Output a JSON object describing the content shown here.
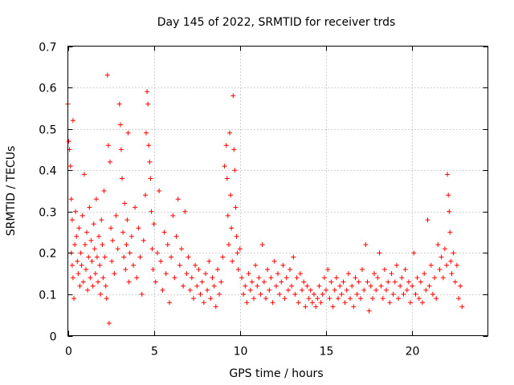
{
  "chart_data": {
    "type": "scatter",
    "title": "Day 145 of 2022, SRMTID for receiver trds",
    "xlabel": "GPS time / hours",
    "ylabel": "SRMTID / TECUs",
    "xlim": [
      0,
      24.4
    ],
    "ylim": [
      0,
      0.7
    ],
    "xticks": [
      0,
      5,
      10,
      15,
      20
    ],
    "yticks": [
      0,
      0.1,
      0.2,
      0.3,
      0.4,
      0.5,
      0.6,
      0.7
    ],
    "grid": true,
    "marker": "+",
    "color": "#ff0000",
    "series": [
      {
        "name": "trds",
        "points": [
          [
            0.0,
            0.56
          ],
          [
            0.05,
            0.47
          ],
          [
            0.1,
            0.45
          ],
          [
            0.15,
            0.41
          ],
          [
            0.2,
            0.33
          ],
          [
            0.25,
            0.28
          ],
          [
            0.3,
            0.52
          ],
          [
            0.2,
            0.2
          ],
          [
            0.25,
            0.17
          ],
          [
            0.3,
            0.14
          ],
          [
            0.35,
            0.09
          ],
          [
            0.4,
            0.22
          ],
          [
            0.45,
            0.3
          ],
          [
            0.5,
            0.24
          ],
          [
            0.55,
            0.18
          ],
          [
            0.6,
            0.15
          ],
          [
            0.65,
            0.26
          ],
          [
            0.7,
            0.12
          ],
          [
            0.75,
            0.2
          ],
          [
            0.8,
            0.17
          ],
          [
            0.85,
            0.29
          ],
          [
            0.9,
            0.13
          ],
          [
            0.95,
            0.39
          ],
          [
            1.0,
            0.22
          ],
          [
            1.05,
            0.16
          ],
          [
            1.1,
            0.25
          ],
          [
            1.15,
            0.11
          ],
          [
            1.2,
            0.19
          ],
          [
            1.25,
            0.31
          ],
          [
            1.3,
            0.14
          ],
          [
            1.35,
            0.23
          ],
          [
            1.4,
            0.18
          ],
          [
            1.45,
            0.12
          ],
          [
            1.5,
            0.27
          ],
          [
            1.55,
            0.21
          ],
          [
            1.6,
            0.15
          ],
          [
            1.65,
            0.33
          ],
          [
            1.7,
            0.19
          ],
          [
            1.75,
            0.13
          ],
          [
            1.8,
            0.24
          ],
          [
            1.85,
            0.17
          ],
          [
            1.9,
            0.1
          ],
          [
            1.95,
            0.28
          ],
          [
            2.0,
            0.22
          ],
          [
            2.05,
            0.14
          ],
          [
            2.1,
            0.35
          ],
          [
            2.15,
            0.19
          ],
          [
            2.2,
            0.12
          ],
          [
            2.25,
            0.09
          ],
          [
            2.3,
            0.63
          ],
          [
            2.35,
            0.46
          ],
          [
            2.4,
            0.03
          ],
          [
            2.45,
            0.42
          ],
          [
            2.5,
            0.26
          ],
          [
            2.55,
            0.18
          ],
          [
            2.6,
            0.23
          ],
          [
            2.7,
            0.15
          ],
          [
            2.8,
            0.29
          ],
          [
            2.9,
            0.21
          ],
          [
            3.0,
            0.56
          ],
          [
            3.05,
            0.51
          ],
          [
            3.1,
            0.45
          ],
          [
            3.15,
            0.38
          ],
          [
            3.2,
            0.25
          ],
          [
            3.25,
            0.19
          ],
          [
            3.3,
            0.32
          ],
          [
            3.35,
            0.16
          ],
          [
            3.4,
            0.22
          ],
          [
            3.45,
            0.28
          ],
          [
            3.5,
            0.49
          ],
          [
            3.55,
            0.13
          ],
          [
            3.6,
            0.2
          ],
          [
            3.7,
            0.24
          ],
          [
            3.8,
            0.17
          ],
          [
            3.9,
            0.31
          ],
          [
            4.0,
            0.14
          ],
          [
            4.1,
            0.26
          ],
          [
            4.2,
            0.19
          ],
          [
            4.3,
            0.1
          ],
          [
            4.4,
            0.23
          ],
          [
            4.5,
            0.34
          ],
          [
            4.55,
            0.49
          ],
          [
            4.6,
            0.59
          ],
          [
            4.65,
            0.56
          ],
          [
            4.7,
            0.46
          ],
          [
            4.75,
            0.42
          ],
          [
            4.8,
            0.38
          ],
          [
            4.85,
            0.3
          ],
          [
            4.9,
            0.21
          ],
          [
            4.95,
            0.16
          ],
          [
            5.0,
            0.27
          ],
          [
            5.1,
            0.13
          ],
          [
            5.2,
            0.2
          ],
          [
            5.3,
            0.35
          ],
          [
            5.4,
            0.18
          ],
          [
            5.5,
            0.11
          ],
          [
            5.6,
            0.25
          ],
          [
            5.7,
            0.15
          ],
          [
            5.8,
            0.22
          ],
          [
            5.9,
            0.08
          ],
          [
            6.0,
            0.19
          ],
          [
            6.1,
            0.29
          ],
          [
            6.2,
            0.14
          ],
          [
            6.3,
            0.24
          ],
          [
            6.4,
            0.33
          ],
          [
            6.5,
            0.17
          ],
          [
            6.6,
            0.21
          ],
          [
            6.7,
            0.12
          ],
          [
            6.8,
            0.3
          ],
          [
            6.9,
            0.15
          ],
          [
            7.0,
            0.19
          ],
          [
            7.1,
            0.11
          ],
          [
            7.2,
            0.14
          ],
          [
            7.3,
            0.09
          ],
          [
            7.4,
            0.17
          ],
          [
            7.5,
            0.12
          ],
          [
            7.6,
            0.16
          ],
          [
            7.7,
            0.1
          ],
          [
            7.8,
            0.13
          ],
          [
            7.9,
            0.08
          ],
          [
            8.0,
            0.15
          ],
          [
            8.1,
            0.11
          ],
          [
            8.2,
            0.18
          ],
          [
            8.3,
            0.09
          ],
          [
            8.4,
            0.14
          ],
          [
            8.5,
            0.12
          ],
          [
            8.6,
            0.07
          ],
          [
            8.7,
            0.16
          ],
          [
            8.8,
            0.1
          ],
          [
            8.9,
            0.13
          ],
          [
            9.0,
            0.19
          ],
          [
            9.1,
            0.41
          ],
          [
            9.2,
            0.46
          ],
          [
            9.25,
            0.38
          ],
          [
            9.3,
            0.29
          ],
          [
            9.35,
            0.22
          ],
          [
            9.4,
            0.49
          ],
          [
            9.45,
            0.34
          ],
          [
            9.5,
            0.26
          ],
          [
            9.55,
            0.18
          ],
          [
            9.6,
            0.58
          ],
          [
            9.65,
            0.45
          ],
          [
            9.7,
            0.4
          ],
          [
            9.75,
            0.31
          ],
          [
            9.8,
            0.24
          ],
          [
            9.85,
            0.2
          ],
          [
            9.9,
            0.16
          ],
          [
            10.0,
            0.21
          ],
          [
            10.1,
            0.14
          ],
          [
            10.2,
            0.1
          ],
          [
            10.3,
            0.12
          ],
          [
            10.4,
            0.08
          ],
          [
            10.5,
            0.15
          ],
          [
            10.6,
            0.11
          ],
          [
            10.7,
            0.13
          ],
          [
            10.8,
            0.09
          ],
          [
            10.9,
            0.17
          ],
          [
            11.0,
            0.12
          ],
          [
            11.1,
            0.14
          ],
          [
            11.2,
            0.1
          ],
          [
            11.3,
            0.22
          ],
          [
            11.4,
            0.13
          ],
          [
            11.5,
            0.09
          ],
          [
            11.6,
            0.16
          ],
          [
            11.7,
            0.11
          ],
          [
            11.8,
            0.14
          ],
          [
            11.9,
            0.08
          ],
          [
            12.0,
            0.18
          ],
          [
            12.1,
            0.12
          ],
          [
            12.2,
            0.15
          ],
          [
            12.3,
            0.1
          ],
          [
            12.4,
            0.13
          ],
          [
            12.5,
            0.17
          ],
          [
            12.6,
            0.09
          ],
          [
            12.7,
            0.14
          ],
          [
            12.8,
            0.11
          ],
          [
            12.9,
            0.16
          ],
          [
            13.0,
            0.12
          ],
          [
            13.1,
            0.19
          ],
          [
            13.2,
            0.1
          ],
          [
            13.3,
            0.14
          ],
          [
            13.4,
            0.08
          ],
          [
            13.5,
            0.15
          ],
          [
            13.6,
            0.11
          ],
          [
            13.7,
            0.13
          ],
          [
            13.8,
            0.07
          ],
          [
            13.9,
            0.12
          ],
          [
            14.0,
            0.09
          ],
          [
            14.1,
            0.11
          ],
          [
            14.2,
            0.08
          ],
          [
            14.3,
            0.1
          ],
          [
            14.4,
            0.07
          ],
          [
            14.5,
            0.09
          ],
          [
            14.6,
            0.12
          ],
          [
            14.7,
            0.08
          ],
          [
            14.8,
            0.1
          ],
          [
            14.9,
            0.14
          ],
          [
            15.0,
            0.11
          ],
          [
            15.1,
            0.16
          ],
          [
            15.2,
            0.09
          ],
          [
            15.3,
            0.13
          ],
          [
            15.4,
            0.07
          ],
          [
            15.5,
            0.11
          ],
          [
            15.6,
            0.14
          ],
          [
            15.7,
            0.09
          ],
          [
            15.8,
            0.12
          ],
          [
            15.9,
            0.1
          ],
          [
            16.0,
            0.13
          ],
          [
            16.1,
            0.08
          ],
          [
            16.2,
            0.11
          ],
          [
            16.3,
            0.15
          ],
          [
            16.4,
            0.09
          ],
          [
            16.5,
            0.12
          ],
          [
            16.6,
            0.07
          ],
          [
            16.7,
            0.14
          ],
          [
            16.8,
            0.1
          ],
          [
            16.9,
            0.13
          ],
          [
            17.0,
            0.09
          ],
          [
            17.1,
            0.16
          ],
          [
            17.2,
            0.11
          ],
          [
            17.3,
            0.22
          ],
          [
            17.4,
            0.13
          ],
          [
            17.5,
            0.06
          ],
          [
            17.6,
            0.12
          ],
          [
            17.7,
            0.09
          ],
          [
            17.8,
            0.15
          ],
          [
            17.9,
            0.11
          ],
          [
            18.0,
            0.14
          ],
          [
            18.1,
            0.2
          ],
          [
            18.2,
            0.12
          ],
          [
            18.3,
            0.09
          ],
          [
            18.4,
            0.16
          ],
          [
            18.5,
            0.11
          ],
          [
            18.6,
            0.13
          ],
          [
            18.7,
            0.08
          ],
          [
            18.8,
            0.15
          ],
          [
            18.9,
            0.1
          ],
          [
            19.0,
            0.13
          ],
          [
            19.1,
            0.17
          ],
          [
            19.2,
            0.09
          ],
          [
            19.3,
            0.12
          ],
          [
            19.4,
            0.14
          ],
          [
            19.5,
            0.1
          ],
          [
            19.6,
            0.16
          ],
          [
            19.7,
            0.11
          ],
          [
            19.8,
            0.13
          ],
          [
            19.9,
            0.08
          ],
          [
            20.0,
            0.12
          ],
          [
            20.1,
            0.2
          ],
          [
            20.2,
            0.1
          ],
          [
            20.3,
            0.14
          ],
          [
            20.4,
            0.09
          ],
          [
            20.5,
            0.13
          ],
          [
            20.6,
            0.08
          ],
          [
            20.7,
            0.15
          ],
          [
            20.8,
            0.11
          ],
          [
            20.9,
            0.28
          ],
          [
            21.0,
            0.12
          ],
          [
            21.1,
            0.17
          ],
          [
            21.2,
            0.1
          ],
          [
            21.3,
            0.14
          ],
          [
            21.4,
            0.09
          ],
          [
            21.5,
            0.22
          ],
          [
            21.6,
            0.16
          ],
          [
            21.7,
            0.19
          ],
          [
            21.8,
            0.14
          ],
          [
            21.9,
            0.21
          ],
          [
            22.0,
            0.17
          ],
          [
            22.05,
            0.39
          ],
          [
            22.1,
            0.34
          ],
          [
            22.15,
            0.3
          ],
          [
            22.2,
            0.25
          ],
          [
            22.25,
            0.18
          ],
          [
            22.3,
            0.15
          ],
          [
            22.4,
            0.2
          ],
          [
            22.5,
            0.13
          ],
          [
            22.6,
            0.17
          ],
          [
            22.7,
            0.09
          ],
          [
            22.8,
            0.12
          ],
          [
            22.9,
            0.07
          ]
        ]
      }
    ]
  }
}
